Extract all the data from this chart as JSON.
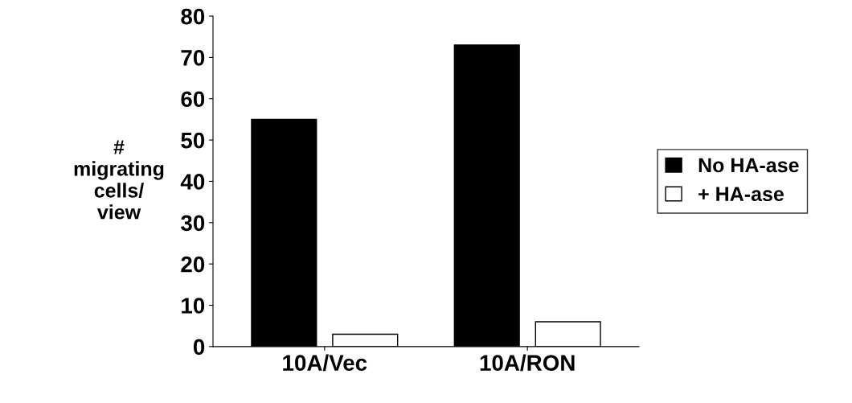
{
  "chart_data": {
    "type": "bar",
    "ylabel": "#\nmigrating\ncells/\nview",
    "categories": [
      "10A/Vec",
      "10A/RON"
    ],
    "series": [
      {
        "name": "No HA-ase",
        "color": "#000000",
        "values": [
          55,
          73
        ]
      },
      {
        "name": "+ HA-ase",
        "color": "#ffffff",
        "values": [
          3,
          6
        ]
      }
    ],
    "ylim": [
      0,
      80
    ],
    "yticks": [
      0,
      10,
      20,
      30,
      40,
      50,
      60,
      70,
      80
    ],
    "grid": false,
    "legend": "right"
  }
}
